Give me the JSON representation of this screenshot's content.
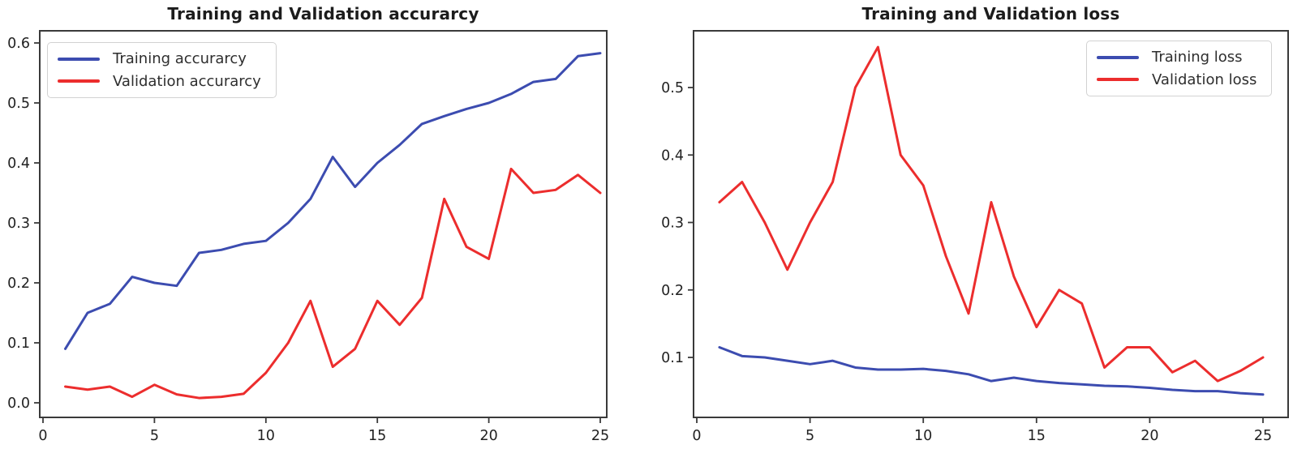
{
  "figure": {
    "background": "#ffffff",
    "axis_color": "#3a3a3a",
    "tick_label_color": "#222222"
  },
  "chart_data": [
    {
      "type": "line",
      "title": "Training and Validation accurarcy",
      "grid": false,
      "legend": {
        "position": "upper left",
        "entries": [
          "Training accurarcy",
          "Validation accurarcy"
        ]
      },
      "x": [
        1,
        2,
        3,
        4,
        5,
        6,
        7,
        8,
        9,
        10,
        11,
        12,
        13,
        14,
        15,
        16,
        17,
        18,
        19,
        20,
        21,
        22,
        23,
        24,
        25
      ],
      "x_ticks": [
        0,
        5,
        10,
        15,
        20,
        25
      ],
      "y_ticks": [
        0.0,
        0.1,
        0.2,
        0.3,
        0.4,
        0.5,
        0.6
      ],
      "y_tick_labels": [
        "0.0",
        "0.1",
        "0.2",
        "0.3",
        "0.4",
        "0.5",
        "0.6"
      ],
      "xlim": [
        -0.3,
        26.3
      ],
      "ylim": [
        -0.025,
        0.62
      ],
      "series": [
        {
          "name": "Training accurarcy",
          "color": "#3c4cb0",
          "values": [
            0.09,
            0.15,
            0.165,
            0.21,
            0.2,
            0.195,
            0.25,
            0.255,
            0.265,
            0.27,
            0.3,
            0.34,
            0.41,
            0.36,
            0.4,
            0.43,
            0.465,
            0.478,
            0.49,
            0.5,
            0.515,
            0.535,
            0.54,
            0.578,
            0.583
          ]
        },
        {
          "name": "Validation accurarcy",
          "color": "#ec2d2d",
          "values": [
            0.027,
            0.022,
            0.027,
            0.01,
            0.03,
            0.014,
            0.008,
            0.01,
            0.015,
            0.05,
            0.1,
            0.17,
            0.06,
            0.09,
            0.17,
            0.13,
            0.175,
            0.34,
            0.26,
            0.24,
            0.39,
            0.35,
            0.355,
            0.38,
            0.35
          ]
        }
      ]
    },
    {
      "type": "line",
      "title": "Training and Validation loss",
      "grid": false,
      "legend": {
        "position": "upper right",
        "entries": [
          "Training loss",
          "Validation loss"
        ]
      },
      "x": [
        1,
        2,
        3,
        4,
        5,
        6,
        7,
        8,
        9,
        10,
        11,
        12,
        13,
        14,
        15,
        16,
        17,
        18,
        19,
        20,
        21,
        22,
        23,
        24,
        25
      ],
      "x_ticks": [
        0,
        5,
        10,
        15,
        20,
        25
      ],
      "y_ticks": [
        0.1,
        0.2,
        0.3,
        0.4,
        0.5
      ],
      "y_tick_labels": [
        "0.1",
        "0.2",
        "0.3",
        "0.4",
        "0.5"
      ],
      "xlim": [
        -0.3,
        26.3
      ],
      "ylim": [
        0.01,
        0.59
      ],
      "series": [
        {
          "name": "Training loss",
          "color": "#3c4cb0",
          "values": [
            0.115,
            0.102,
            0.1,
            0.095,
            0.09,
            0.095,
            0.085,
            0.082,
            0.082,
            0.083,
            0.08,
            0.075,
            0.065,
            0.07,
            0.065,
            0.062,
            0.06,
            0.058,
            0.057,
            0.055,
            0.052,
            0.05,
            0.05,
            0.047,
            0.045
          ]
        },
        {
          "name": "Validation loss",
          "color": "#ec2d2d",
          "values": [
            0.33,
            0.36,
            0.3,
            0.23,
            0.3,
            0.36,
            0.5,
            0.56,
            0.4,
            0.355,
            0.25,
            0.165,
            0.33,
            0.22,
            0.145,
            0.2,
            0.18,
            0.085,
            0.115,
            0.115,
            0.078,
            0.095,
            0.065,
            0.08,
            0.1
          ]
        }
      ]
    }
  ]
}
